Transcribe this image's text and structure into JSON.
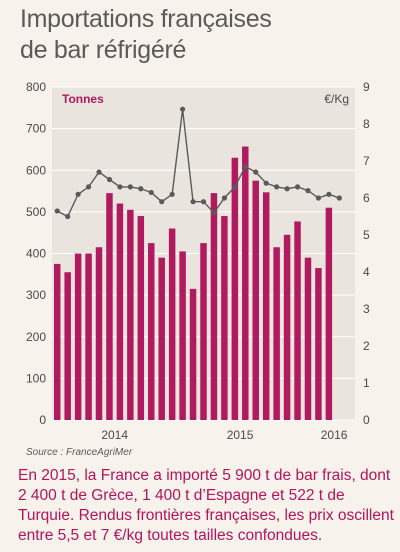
{
  "title": {
    "line1": "Importations françaises",
    "line2": "de bar réfrigéré"
  },
  "source": "Source : FranceAgriMer",
  "caption": "En 2015, la France a importé 5 900 t de bar frais, dont 2 400 t de Grèce, 1 400 t d’Espagne et 522 t de Turquie. Rendus frontières françaises, les prix oscillent entre 5,5 et 7 €/kg toutes tailles confondues.",
  "chart_data": {
    "type": "bar+line",
    "left_axis_label": "Tonnes",
    "right_axis_label": "€/Kg",
    "ylim_left": [
      0,
      800
    ],
    "ylim_right": [
      0,
      9
    ],
    "left_ticks": [
      "0",
      "100",
      "200",
      "300",
      "400",
      "500",
      "600",
      "700",
      "800"
    ],
    "right_ticks": [
      "0",
      "1",
      "2",
      "3",
      "4",
      "5",
      "6",
      "7",
      "8",
      "9"
    ],
    "x_labels": [
      {
        "index": 5.5,
        "label": "2014"
      },
      {
        "index": 17.5,
        "label": "2015"
      },
      {
        "index": 26.5,
        "label": "2016"
      }
    ],
    "months": 29,
    "bars_tonnes": [
      375,
      355,
      400,
      400,
      415,
      545,
      520,
      505,
      490,
      425,
      390,
      460,
      405,
      315,
      425,
      545,
      490,
      630,
      657,
      575,
      547,
      415,
      445,
      477,
      390,
      365,
      510
    ],
    "bar_start_index": 0,
    "price_eur_kg": [
      5.65,
      5.5,
      6.1,
      6.3,
      6.7,
      6.5,
      6.3,
      6.3,
      6.25,
      6.15,
      5.9,
      6.1,
      8.4,
      5.9,
      5.9,
      5.6,
      6.0,
      6.3,
      6.85,
      6.7,
      6.4,
      6.3,
      6.25,
      6.3,
      6.2,
      6.0,
      6.1,
      6.0
    ],
    "colors": {
      "bars": "#b01a5f",
      "line": "#5a5a5a",
      "axis_text": "#4a4a4a",
      "tonnes_label": "#b01a5f",
      "grid": "#ffffff",
      "plot_bg": "#e9e4de"
    }
  }
}
